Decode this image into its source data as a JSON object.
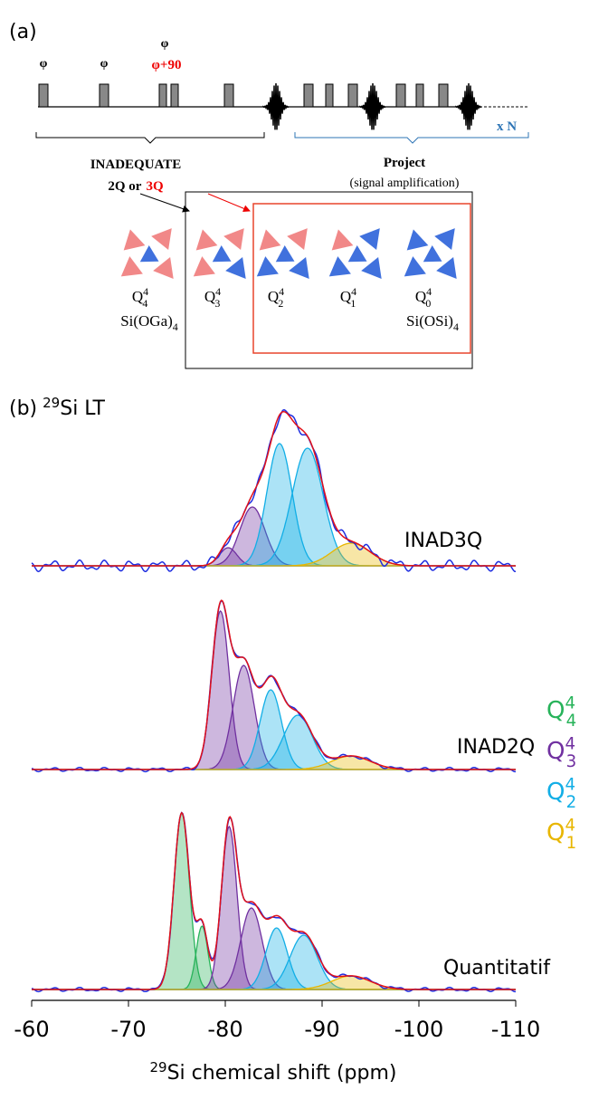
{
  "panel_a": {
    "label": "(a)",
    "phases": [
      "φ",
      "φ",
      "φ"
    ],
    "phase_shift": "φ+90",
    "repeat": "x N",
    "inadequate": {
      "title": "INADEQUATE",
      "order": "2Q or",
      "order_highlight": "3Q"
    },
    "project": {
      "title": "Project",
      "subtitle": "(signal amplification)"
    },
    "species": [
      {
        "base": "Q",
        "sup": "4",
        "sub": "4",
        "formula": {
          "base": "Si(OGa)",
          "sub": "4"
        }
      },
      {
        "base": "Q",
        "sup": "4",
        "sub": "3"
      },
      {
        "base": "Q",
        "sup": "4",
        "sub": "2"
      },
      {
        "base": "Q",
        "sup": "4",
        "sub": "1"
      },
      {
        "base": "Q",
        "sup": "4",
        "sub": "0",
        "formula": {
          "base": "Si(OSi)",
          "sub": "4"
        }
      }
    ]
  },
  "chart_data": {
    "type": "spectrum",
    "label": {
      "prefix": "(b)",
      "sup": "29",
      "text": "Si LT"
    },
    "xlabel": {
      "sup": "29",
      "text": "Si chemical shift (ppm)"
    },
    "xlim": [
      -60,
      -110
    ],
    "xticks": [
      -60,
      -70,
      -80,
      -90,
      -100,
      -110
    ],
    "series": [
      {
        "name": {
          "base": "Q",
          "sup": "4",
          "sub": "4"
        },
        "color": "#27b35a"
      },
      {
        "name": {
          "base": "Q",
          "sup": "4",
          "sub": "3"
        },
        "color": "#7030a0"
      },
      {
        "name": {
          "base": "Q",
          "sup": "4",
          "sub": "2"
        },
        "color": "#12aee6"
      },
      {
        "name": {
          "base": "Q",
          "sup": "4",
          "sub": "1"
        },
        "color": "#e8b600"
      }
    ],
    "spectra": [
      {
        "label": "INAD3Q",
        "components": [
          [],
          [
            {
              "center": -80.3,
              "height": 20,
              "width": 0.9
            },
            {
              "center": -82.8,
              "height": 65,
              "width": 1.3
            }
          ],
          [
            {
              "center": -85.6,
              "height": 135,
              "width": 1.3
            },
            {
              "center": -88.5,
              "height": 130,
              "width": 1.6
            }
          ],
          [
            {
              "center": -93,
              "height": 25,
              "width": 2.0
            }
          ]
        ]
      },
      {
        "label": "INAD2Q",
        "components": [
          [],
          [
            {
              "center": -79.5,
              "height": 175,
              "width": 0.9
            },
            {
              "center": -81.9,
              "height": 115,
              "width": 1.1
            }
          ],
          [
            {
              "center": -84.7,
              "height": 88,
              "width": 1.1
            },
            {
              "center": -87.5,
              "height": 60,
              "width": 1.5
            }
          ],
          [
            {
              "center": -93,
              "height": 15,
              "width": 2.0
            }
          ]
        ]
      },
      {
        "label": "Quantitatif",
        "components": [
          [
            {
              "center": -75.5,
              "height": 195,
              "width": 0.8
            },
            {
              "center": -77.6,
              "height": 70,
              "width": 0.6
            }
          ],
          [
            {
              "center": -80.4,
              "height": 180,
              "width": 0.8
            },
            {
              "center": -82.7,
              "height": 90,
              "width": 1.1
            }
          ],
          [
            {
              "center": -85.3,
              "height": 68,
              "width": 1.1
            },
            {
              "center": -88.1,
              "height": 60,
              "width": 1.4
            }
          ],
          [
            {
              "center": -93,
              "height": 15,
              "width": 2.0
            }
          ]
        ]
      }
    ]
  }
}
